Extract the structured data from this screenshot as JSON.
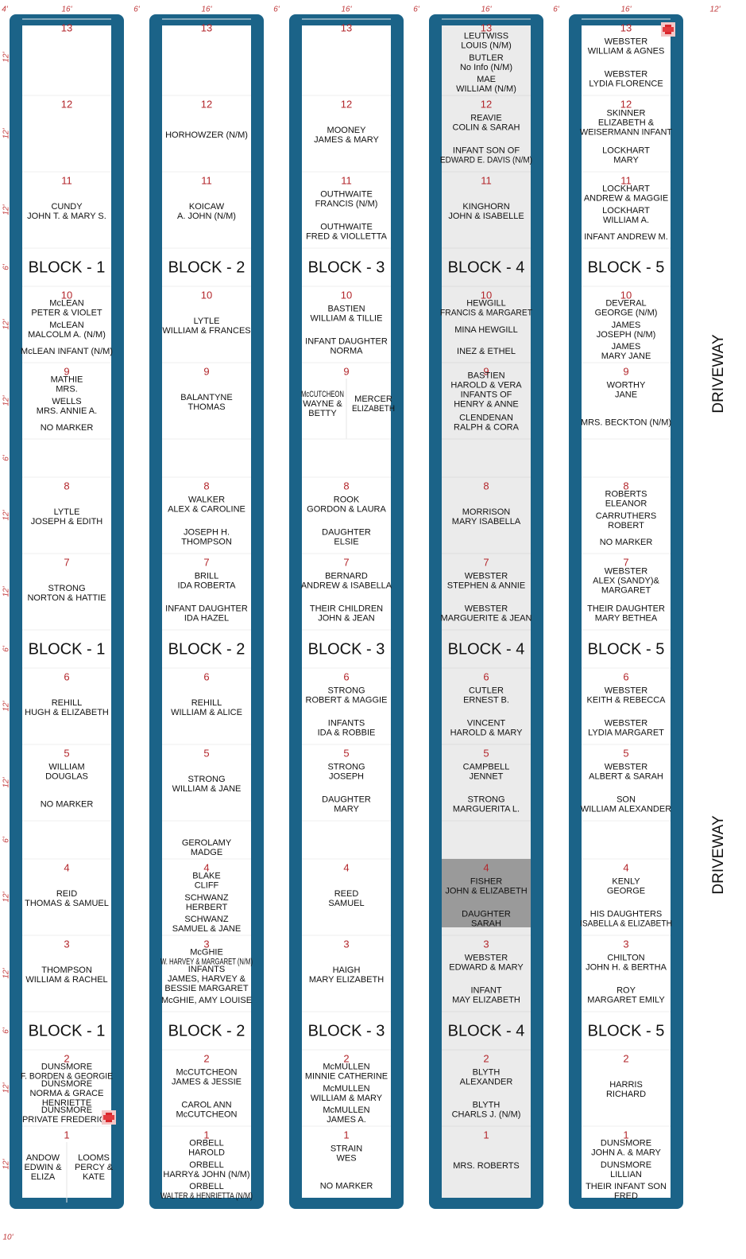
{
  "dimensions": {
    "top": [
      "4'",
      "16'",
      "6'",
      "16'",
      "6'",
      "16'",
      "6'",
      "16'",
      "6'",
      "16'",
      "12'"
    ],
    "left": [
      "12'",
      "12'",
      "12'",
      "6'",
      "12'",
      "12'",
      "6'",
      "12'",
      "12'",
      "6'",
      "12'",
      "12'",
      "6'",
      "12'",
      "12'",
      "6'",
      "12'",
      "12'"
    ],
    "bottom": "10'"
  },
  "driveway": [
    "DRIVEWAY",
    "DRIVEWAY"
  ],
  "columns": [
    {
      "block": "BLOCK - 1",
      "plots": [
        {
          "number": "13"
        },
        {
          "number": "12"
        },
        {
          "number": "11",
          "groups": [
            [
              "CUNDY",
              "JOHN T. & MARY S."
            ]
          ]
        },
        {
          "number": "10",
          "groups": [
            [
              "McLEAN",
              "PETER & VIOLET"
            ],
            [
              "McLEAN",
              "MALCOLM A. (N/M)"
            ],
            [
              "McLEAN INFANT (N/M)"
            ]
          ]
        },
        {
          "number": "9",
          "groups": [
            [
              "MATHIE",
              "MRS."
            ],
            [
              "WELLS",
              "MRS. ANNIE A."
            ],
            [
              "NO MARKER"
            ]
          ]
        },
        {
          "number": "8",
          "groups": [
            [
              "LYTLE",
              "JOSEPH & EDITH"
            ]
          ]
        },
        {
          "number": "7",
          "groups": [
            [
              "STRONG",
              "NORTON & HATTIE"
            ]
          ]
        },
        {
          "number": "6",
          "groups": [
            [
              "REHILL",
              "HUGH & ELIZABETH"
            ]
          ]
        },
        {
          "number": "5",
          "groups": [
            [
              "WILLIAM",
              "DOUGLAS"
            ],
            [
              "NO MARKER"
            ]
          ]
        },
        {
          "number": "4",
          "groups": [
            [
              "REID",
              "THOMAS & SAMUEL"
            ]
          ]
        },
        {
          "number": "3",
          "groups": [
            [
              "THOMPSON",
              "WILLIAM & RACHEL"
            ]
          ]
        },
        {
          "number": "2",
          "groups": [
            [
              "DUNSMORE",
              "F. BORDEN & GEORGIE"
            ],
            [
              "DUNSMORE",
              "NORMA & GRACE",
              "HENRIETTE"
            ],
            [
              "DUNSMORE",
              "PRIVATE FREDERICK"
            ]
          ]
        },
        {
          "number": "1",
          "sides": [
            [
              "ANDOW",
              "EDWIN &",
              "ELIZA"
            ],
            [
              "LOOMS",
              "PERCY &",
              "KATE"
            ]
          ]
        }
      ]
    },
    {
      "block": "BLOCK - 2",
      "gap_note": [
        "GEROLAMY",
        "MADGE"
      ],
      "plots": [
        {
          "number": "13"
        },
        {
          "number": "12",
          "groups": [
            [
              "HORHOWZER (N/M)"
            ]
          ]
        },
        {
          "number": "11",
          "groups": [
            [
              "KOICAW",
              "A. JOHN (N/M)"
            ]
          ]
        },
        {
          "number": "10",
          "groups": [
            [
              "LYTLE",
              "WILLIAM & FRANCES"
            ]
          ]
        },
        {
          "number": "9",
          "groups": [
            [
              "BALANTYNE",
              "THOMAS"
            ]
          ]
        },
        {
          "number": "8",
          "groups": [
            [
              "WALKER",
              "ALEX & CAROLINE"
            ],
            [
              "JOSEPH H.",
              "THOMPSON"
            ]
          ]
        },
        {
          "number": "7",
          "groups": [
            [
              "BRILL",
              "IDA ROBERTA"
            ],
            [
              "INFANT DAUGHTER",
              "IDA HAZEL"
            ]
          ]
        },
        {
          "number": "6",
          "groups": [
            [
              "REHILL",
              "WILLIAM & ALICE"
            ]
          ]
        },
        {
          "number": "5",
          "groups": [
            [
              "STRONG",
              "WILLIAM & JANE"
            ]
          ]
        },
        {
          "number": "4",
          "groups": [
            [
              "BLAKE",
              "CLIFF"
            ],
            [
              "SCHWANZ",
              "HERBERT"
            ],
            [
              "SCHWANZ",
              "SAMUEL & JANE"
            ]
          ]
        },
        {
          "number": "3",
          "groups": [
            [
              "McGHIE",
              "W. HARVEY & MARGARET (N/M)"
            ],
            [
              "INFANTS",
              "JAMES, HARVEY &",
              "BESSIE MARGARET"
            ],
            [
              "McGHIE, AMY LOUISE"
            ]
          ]
        },
        {
          "number": "2",
          "groups": [
            [
              "McCUTCHEON",
              "JAMES & JESSIE"
            ],
            [
              "CAROL ANN",
              "McCUTCHEON"
            ]
          ]
        },
        {
          "number": "1",
          "groups": [
            [
              "ORBELL",
              "HAROLD"
            ],
            [
              "ORBELL",
              "HARRY& JOHN (N/M)"
            ],
            [
              "ORBELL",
              "WALTER & HENRIETTA (N/M)"
            ]
          ]
        }
      ]
    },
    {
      "block": "BLOCK - 3",
      "plots": [
        {
          "number": "13"
        },
        {
          "number": "12",
          "groups": [
            [
              "MOONEY",
              "JAMES & MARY"
            ]
          ]
        },
        {
          "number": "11",
          "groups": [
            [
              "OUTHWAITE",
              "FRANCIS (N/M)"
            ],
            [
              "OUTHWAITE",
              "FRED & VIOLLETTA"
            ]
          ]
        },
        {
          "number": "10",
          "groups": [
            [
              "BASTIEN",
              "WILLIAM & TILLIE"
            ],
            [
              "INFANT DAUGHTER",
              "NORMA"
            ]
          ]
        },
        {
          "number": "9",
          "sides": [
            [
              "McCUTCHEON",
              "WAYNE &",
              "BETTY"
            ],
            [
              "MERCER",
              "ELIZABETH"
            ]
          ]
        },
        {
          "number": "8",
          "groups": [
            [
              "ROOK",
              "GORDON & LAURA"
            ],
            [
              "DAUGHTER",
              "ELSIE"
            ]
          ]
        },
        {
          "number": "7",
          "groups": [
            [
              "BERNARD",
              "ANDREW & ISABELLA"
            ],
            [
              "THEIR CHILDREN",
              "JOHN & JEAN"
            ]
          ]
        },
        {
          "number": "6",
          "groups": [
            [
              "STRONG",
              "ROBERT & MAGGIE"
            ],
            [
              "INFANTS",
              "IDA & ROBBIE"
            ]
          ]
        },
        {
          "number": "5",
          "groups": [
            [
              "STRONG",
              "JOSEPH"
            ],
            [
              "DAUGHTER",
              "MARY"
            ]
          ]
        },
        {
          "number": "4",
          "groups": [
            [
              "REED",
              "SAMUEL"
            ]
          ]
        },
        {
          "number": "3",
          "groups": [
            [
              "HAIGH",
              "MARY ELIZABETH"
            ]
          ]
        },
        {
          "number": "2",
          "groups": [
            [
              "McMULLEN",
              "MINNIE CATHERINE"
            ],
            [
              "McMULLEN",
              "WILLIAM & MARY"
            ],
            [
              "McMULLEN",
              "JAMES A."
            ]
          ]
        },
        {
          "number": "1",
          "groups": [
            [
              "STRAIN",
              "WES"
            ],
            [
              "NO MARKER"
            ]
          ]
        }
      ]
    },
    {
      "block": "BLOCK - 4",
      "shaded": true,
      "plots": [
        {
          "number": "13",
          "groups": [
            [
              "LEUTWISS",
              "LOUIS (N/M)"
            ],
            [
              "BUTLER",
              "No Info (N/M)"
            ],
            [
              "MAE",
              "WILLIAM (N/M)"
            ]
          ]
        },
        {
          "number": "12",
          "groups": [
            [
              "REAVIE",
              "COLIN & SARAH"
            ],
            [
              "INFANT SON OF",
              "EDWARD E. DAVIS (N/M)"
            ]
          ]
        },
        {
          "number": "11",
          "groups": [
            [
              "KINGHORN",
              "JOHN & ISABELLE"
            ]
          ]
        },
        {
          "number": "10",
          "groups": [
            [
              "HEWGILL",
              "FRANCIS & MARGARET"
            ],
            [
              "MINA HEWGILL"
            ],
            [
              "INEZ & ETHEL"
            ]
          ]
        },
        {
          "number": "9",
          "groups": [
            [
              "BASTIEN",
              "HAROLD & VERA",
              "INFANTS OF",
              "HENRY & ANNE"
            ],
            [
              "CLENDENAN",
              "RALPH & CORA"
            ]
          ]
        },
        {
          "number": "8",
          "groups": [
            [
              "MORRISON",
              "MARY ISABELLA"
            ]
          ]
        },
        {
          "number": "7",
          "groups": [
            [
              "WEBSTER",
              "STEPHEN & ANNIE"
            ],
            [
              "WEBSTER",
              "MARGUERITE & JEAN"
            ]
          ]
        },
        {
          "number": "6",
          "groups": [
            [
              "CUTLER",
              "ERNEST B."
            ],
            [
              "VINCENT",
              "HAROLD & MARY"
            ]
          ]
        },
        {
          "number": "5",
          "groups": [
            [
              "CAMPBELL",
              "JENNET"
            ],
            [
              "STRONG",
              "MARGUERITA L."
            ]
          ]
        },
        {
          "number": "4",
          "highlight": true,
          "groups": [
            [
              "FISHER",
              "JOHN & ELIZABETH"
            ],
            [
              "DAUGHTER",
              "SARAH"
            ]
          ]
        },
        {
          "number": "3",
          "groups": [
            [
              "WEBSTER",
              "EDWARD & MARY"
            ],
            [
              "INFANT",
              "MAY ELIZABETH"
            ]
          ]
        },
        {
          "number": "2",
          "groups": [
            [
              "BLYTH",
              "ALEXANDER"
            ],
            [
              "BLYTH",
              "CHARLS J. (N/M)"
            ]
          ]
        },
        {
          "number": "1",
          "groups": [
            [
              "MRS. ROBERTS"
            ]
          ]
        }
      ]
    },
    {
      "block": "BLOCK - 5",
      "plots": [
        {
          "number": "13",
          "groups": [
            [
              "WEBSTER",
              "WILLIAM & AGNES"
            ],
            [
              "WEBSTER",
              "LYDIA FLORENCE"
            ]
          ]
        },
        {
          "number": "12",
          "groups": [
            [
              "SKINNER",
              "ELIZABETH &",
              "WEISERMANN INFANT"
            ],
            [
              "LOCKHART",
              "MARY"
            ]
          ]
        },
        {
          "number": "11",
          "groups": [
            [
              "LOCKHART",
              "ANDREW & MAGGIE"
            ],
            [
              "LOCKHART",
              "WILLIAM A."
            ],
            [
              "INFANT ANDREW M."
            ]
          ]
        },
        {
          "number": "10",
          "groups": [
            [
              "DEVERAL",
              "GEORGE (N/M)"
            ],
            [
              "JAMES",
              "JOSEPH (N/M)"
            ],
            [
              "JAMES",
              "MARY JANE"
            ]
          ]
        },
        {
          "number": "9",
          "groups": [
            [
              "WORTHY",
              "JANE"
            ],
            [
              "MRS. BECKTON (N/M)"
            ]
          ]
        },
        {
          "number": "8",
          "groups": [
            [
              "ROBERTS",
              "ELEANOR"
            ],
            [
              "CARRUTHERS",
              "ROBERT"
            ],
            [
              "NO MARKER"
            ]
          ]
        },
        {
          "number": "7",
          "groups": [
            [
              "WEBSTER",
              "ALEX (SANDY)&",
              "MARGARET"
            ],
            [
              "THEIR DAUGHTER",
              "MARY BETHEA"
            ]
          ]
        },
        {
          "number": "6",
          "groups": [
            [
              "WEBSTER",
              "KEITH & REBECCA"
            ],
            [
              "WEBSTER",
              "LYDIA MARGARET"
            ]
          ]
        },
        {
          "number": "5",
          "groups": [
            [
              "WEBSTER",
              "ALBERT & SARAH"
            ],
            [
              "SON",
              "WILLIAM ALEXANDER"
            ]
          ]
        },
        {
          "number": "4",
          "groups": [
            [
              "KENLY",
              "GEORGE"
            ],
            [
              "HIS DAUGHTERS",
              "ISABELLA & ELIZABETH"
            ]
          ]
        },
        {
          "number": "3",
          "groups": [
            [
              "CHILTON",
              "JOHN H. & BERTHA"
            ],
            [
              "ROY",
              "MARGARET EMILY"
            ]
          ]
        },
        {
          "number": "2",
          "groups": [
            [
              "HARRIS",
              "RICHARD"
            ]
          ]
        },
        {
          "number": "1",
          "groups": [
            [
              "DUNSMORE",
              "JOHN A. & MARY"
            ],
            [
              "DUNSMORE",
              "LILLIAN"
            ],
            [
              "THEIR INFANT SON",
              "FRED"
            ]
          ]
        }
      ]
    }
  ]
}
